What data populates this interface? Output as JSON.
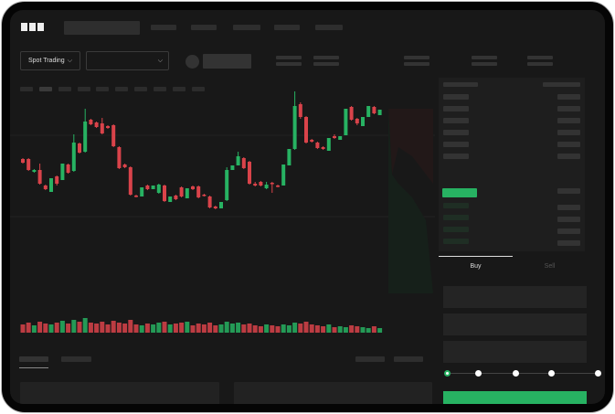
{
  "header": {
    "logo": "OKX"
  },
  "toolbar": {
    "market_type": "Spot Trading"
  },
  "trade_panel": {
    "tabs": [
      "Buy",
      "Sell"
    ],
    "active_tab": "Buy",
    "slider_steps": 5,
    "slider_value": 0
  },
  "colors": {
    "up": "#27b262",
    "down": "#d9434a",
    "background": "#181818",
    "panel": "#1e1e1e"
  },
  "icons": [
    "chevron-down-icon",
    "orderbook-both-icon",
    "orderbook-bids-icon",
    "orderbook-asks-icon"
  ],
  "chart_data": {
    "type": "candlestick",
    "note_units": "relative price, no axis printed",
    "candles": [
      [
        97,
        93,
        98,
        92
      ],
      [
        97,
        85,
        98,
        84
      ],
      [
        83,
        85,
        86,
        82
      ],
      [
        85,
        70,
        92,
        69
      ],
      [
        68,
        64,
        69,
        63
      ],
      [
        61,
        76,
        62,
        61
      ],
      [
        78,
        70,
        79,
        68
      ],
      [
        74,
        92,
        74,
        92
      ],
      [
        91,
        82,
        92,
        81
      ],
      [
        84,
        115,
        124,
        83
      ],
      [
        114,
        104,
        115,
        103
      ],
      [
        105,
        138,
        152,
        104
      ],
      [
        140,
        135,
        141,
        134
      ],
      [
        137,
        132,
        138,
        131
      ],
      [
        136,
        125,
        142,
        124
      ],
      [
        133,
        131,
        134,
        130
      ],
      [
        134,
        111,
        135,
        110
      ],
      [
        110,
        87,
        111,
        86
      ],
      [
        91,
        88,
        92,
        87
      ],
      [
        88,
        58,
        89,
        57
      ],
      [
        57,
        56,
        58,
        55
      ],
      [
        56,
        66,
        57,
        66
      ],
      [
        68,
        64,
        69,
        63
      ],
      [
        64,
        68,
        64,
        68
      ],
      [
        60,
        69,
        70,
        59
      ],
      [
        68,
        51,
        69,
        50
      ],
      [
        50,
        56,
        50,
        56
      ],
      [
        57,
        53,
        58,
        52
      ],
      [
        66,
        56,
        67,
        55
      ],
      [
        54,
        65,
        54,
        65
      ],
      [
        67,
        64,
        68,
        63
      ],
      [
        67,
        55,
        68,
        54
      ],
      [
        58,
        57,
        59,
        56
      ],
      [
        56,
        44,
        57,
        43
      ],
      [
        45,
        43,
        46,
        42
      ],
      [
        43,
        50,
        43,
        50
      ],
      [
        52,
        85,
        88,
        51
      ],
      [
        85,
        90,
        85,
        90
      ],
      [
        90,
        100,
        105,
        90
      ],
      [
        98,
        87,
        99,
        86
      ],
      [
        94,
        70,
        95,
        69
      ],
      [
        70,
        68,
        72,
        67
      ],
      [
        72,
        68,
        73,
        67
      ],
      [
        65,
        69,
        72,
        64
      ],
      [
        71,
        70,
        72,
        60
      ],
      [
        68,
        67,
        69,
        66
      ],
      [
        68,
        91,
        68,
        93
      ],
      [
        90,
        108,
        90,
        110
      ],
      [
        108,
        155,
        171,
        107
      ],
      [
        157,
        143,
        159,
        141
      ],
      [
        143,
        115,
        144,
        114
      ],
      [
        118,
        116,
        119,
        115
      ],
      [
        115,
        109,
        116,
        108
      ],
      [
        110,
        108,
        111,
        107
      ],
      [
        106,
        120,
        106,
        123
      ],
      [
        122,
        120,
        124,
        119
      ],
      [
        118,
        122,
        117,
        125
      ],
      [
        123,
        152,
        123,
        155
      ],
      [
        154,
        140,
        155,
        139
      ],
      [
        141,
        136,
        142,
        134
      ],
      [
        133,
        143,
        133,
        147
      ],
      [
        143,
        155,
        143,
        162
      ],
      [
        154,
        147,
        155,
        146
      ],
      [
        145,
        151,
        145,
        155
      ]
    ],
    "volumes": [
      9,
      11,
      8,
      12,
      10,
      9,
      11,
      13,
      10,
      14,
      12,
      16,
      11,
      10,
      12,
      9,
      13,
      11,
      10,
      14,
      9,
      8,
      10,
      9,
      11,
      12,
      9,
      10,
      11,
      12,
      8,
      10,
      9,
      11,
      8,
      9,
      12,
      10,
      11,
      9,
      10,
      8,
      7,
      9,
      8,
      7,
      9,
      8,
      11,
      10,
      12,
      9,
      8,
      7,
      9,
      6,
      7,
      6,
      8,
      7,
      6,
      5,
      7,
      5
    ]
  }
}
